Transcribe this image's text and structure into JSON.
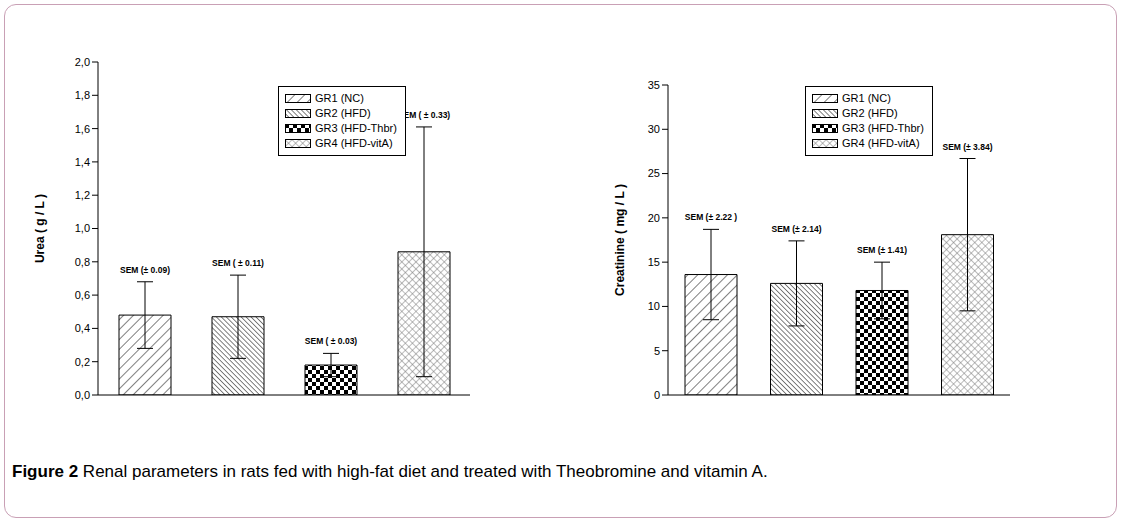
{
  "chart_data": [
    {
      "type": "bar",
      "ylabel": "Urea ( g / L )",
      "categories": [
        "GR1 (NC)",
        "GR2 (HFD)",
        "GR3 (HFD-Thbr)",
        "GR4 (HFD-vitA)"
      ],
      "values": [
        0.48,
        0.47,
        0.18,
        0.86
      ],
      "errors": [
        0.2,
        0.25,
        0.07,
        0.75
      ],
      "error_labels": [
        "SEM (± 0.09)",
        "SEM ( ± 0.11)",
        "SEM ( ± 0.03)",
        "SEM ( ± 0.33)"
      ],
      "color": "#000000",
      "ylim": [
        0,
        2
      ],
      "yticks": [
        {
          "value": 0,
          "label": "0,0"
        },
        {
          "value": 0.2,
          "label": "0,2"
        },
        {
          "value": 0.4,
          "label": "0,4"
        },
        {
          "value": 0.6,
          "label": "0,6"
        },
        {
          "value": 0.8,
          "label": "0,8"
        },
        {
          "value": 1,
          "label": "1,0"
        },
        {
          "value": 1.2,
          "label": "1,2"
        },
        {
          "value": 1.4,
          "label": "1,4"
        },
        {
          "value": 1.6,
          "label": "1,6"
        },
        {
          "value": 1.8,
          "label": "1,8"
        },
        {
          "value": 2,
          "label": "2,0"
        }
      ],
      "legend": "top",
      "tick_labels": "y"
    },
    {
      "type": "bar",
      "ylabel": "Creatinine ( mg / L )",
      "categories": [
        "GR1 (NC)",
        "GR2 (HFD)",
        "GR3 (HFD-Thbr)",
        "GR4 (HFD-vitA)"
      ],
      "values": [
        13.6,
        12.6,
        11.8,
        18.1
      ],
      "errors": [
        5.1,
        4.8,
        3.2,
        8.6
      ],
      "error_labels": [
        "SEM (± 2.22 )",
        "SEM (± 2.14)",
        "SEM (± 1.41)",
        "SEM (± 3.84)"
      ],
      "color": "#000000",
      "ylim": [
        0,
        35
      ],
      "yticks": [
        0,
        5,
        10,
        15,
        20,
        25,
        30,
        35
      ],
      "legend": "top",
      "tick_labels": "y"
    }
  ],
  "caption": {
    "label": "Figure 2",
    "text": "Renal parameters in rats fed with high-fat diet and treated with Theobromine and vitamin A."
  }
}
